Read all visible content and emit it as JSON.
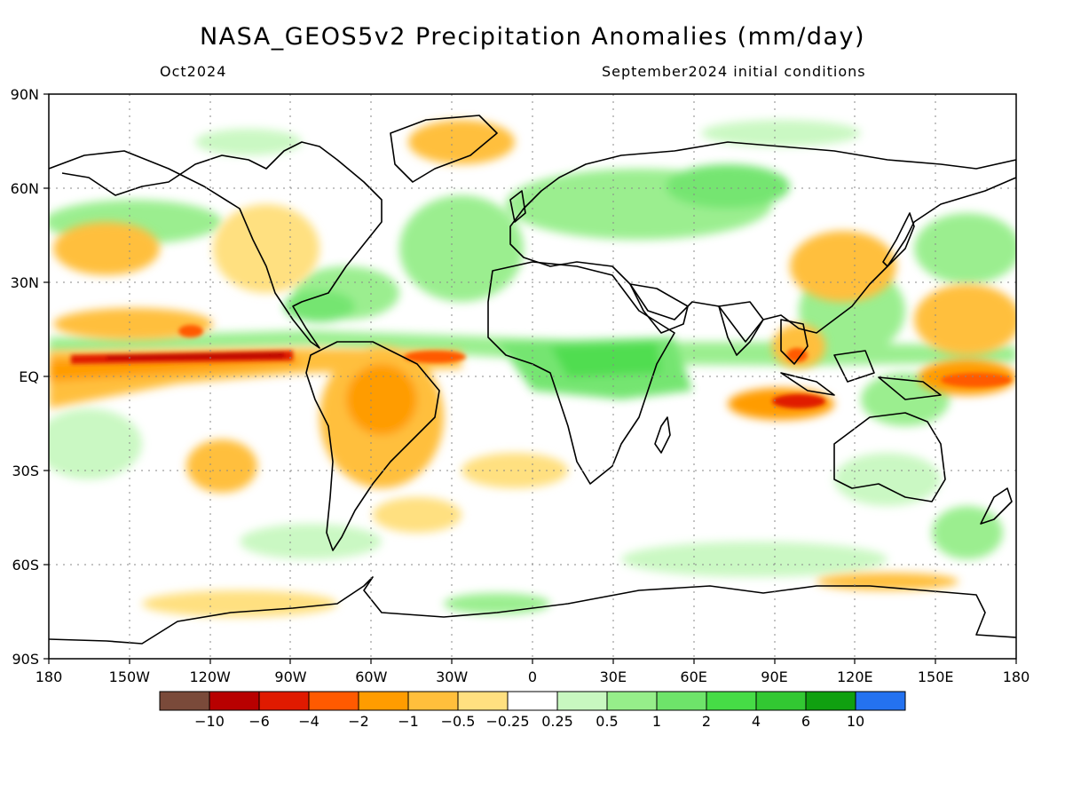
{
  "title": "NASA_GEOS5v2 Precipitation Anomalies (mm/day)",
  "subtitle_left": "Oct2024",
  "subtitle_right": "September2024 initial conditions",
  "map": {
    "projection": "equirectangular",
    "lon_range": [
      -180,
      180
    ],
    "lat_range": [
      -90,
      90
    ],
    "grid": true,
    "lat_labels": [
      "90N",
      "60N",
      "30N",
      "EQ",
      "30S",
      "60S",
      "90S"
    ],
    "lon_labels": [
      "180",
      "150W",
      "120W",
      "90W",
      "60W",
      "30W",
      "0",
      "30E",
      "60E",
      "90E",
      "120E",
      "150E",
      "180"
    ]
  },
  "colorbar": {
    "colors": [
      "#7a4a3a",
      "#b80000",
      "#e01a00",
      "#ff5a00",
      "#ff9c00",
      "#ffbf3c",
      "#ffe080",
      "#ffffff",
      "#c8f8c0",
      "#96ee8a",
      "#6ee46a",
      "#46dc46",
      "#32c832",
      "#10a010",
      "#2472f0"
    ],
    "labels": [
      "-10",
      "-6",
      "-4",
      "-2",
      "-1",
      "-0.5",
      "-0.25",
      "0.25",
      "0.5",
      "1",
      "2",
      "4",
      "6",
      "10"
    ]
  }
}
